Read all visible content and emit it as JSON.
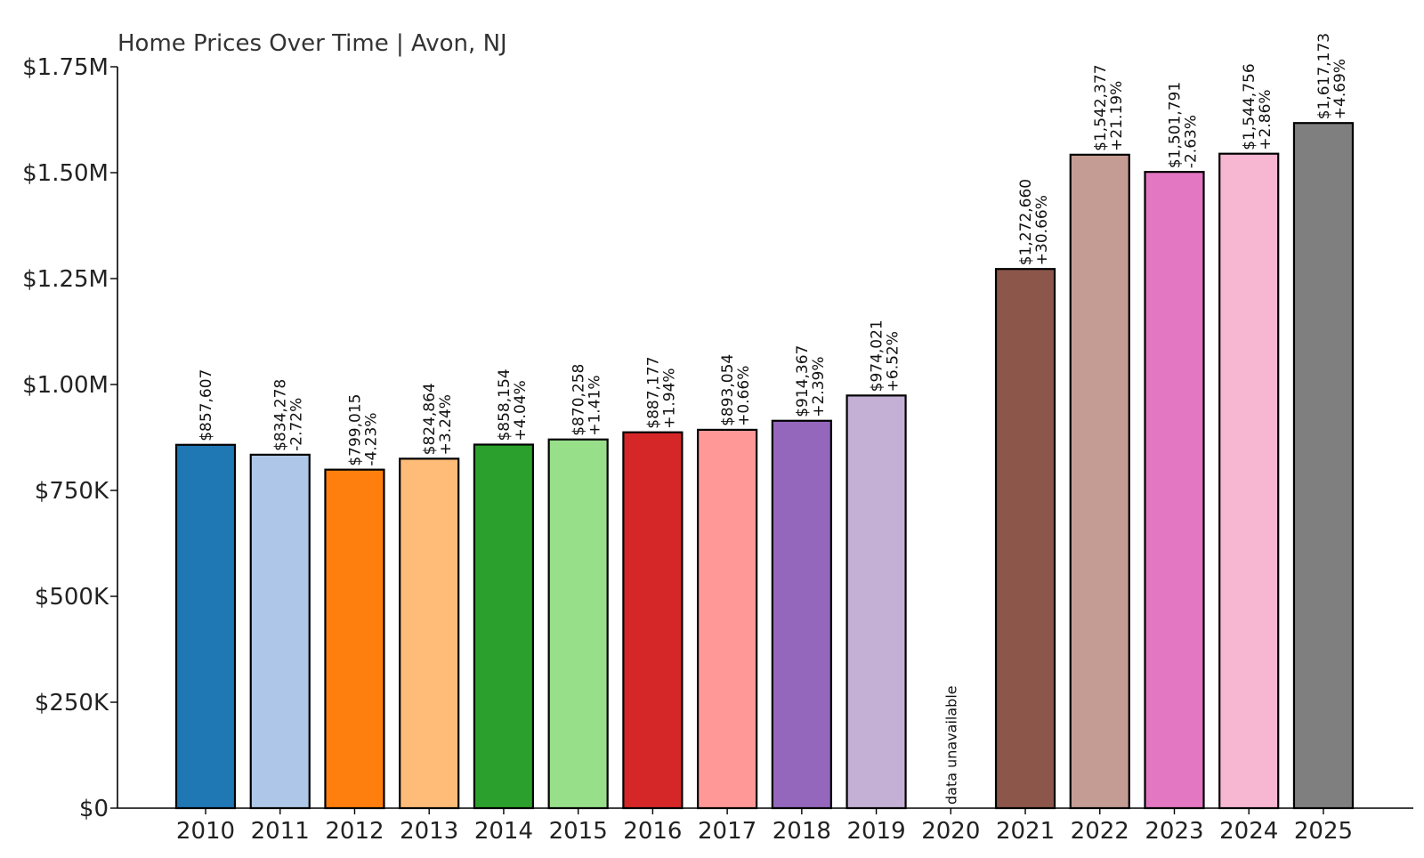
{
  "chart_data": {
    "type": "bar",
    "title": "Home Prices Over Time | Avon, NJ",
    "xlabel": "",
    "ylabel": "",
    "ylim": [
      0,
      1750000
    ],
    "y_ticks": [
      {
        "value": 0,
        "label": "$0"
      },
      {
        "value": 250000,
        "label": "$250K"
      },
      {
        "value": 500000,
        "label": "$500K"
      },
      {
        "value": 750000,
        "label": "$750K"
      },
      {
        "value": 1000000,
        "label": "$1.00M"
      },
      {
        "value": 1250000,
        "label": "$1.25M"
      },
      {
        "value": 1500000,
        "label": "$1.50M"
      },
      {
        "value": 1750000,
        "label": "$1.75M"
      }
    ],
    "grid": false,
    "legend": "none",
    "bars": [
      {
        "year": "2010",
        "value": 857607,
        "price_label": "$857,607",
        "change_label": "",
        "color": "#1f77b4"
      },
      {
        "year": "2011",
        "value": 834278,
        "price_label": "$834,278",
        "change_label": "-2.72%",
        "color": "#aec7e8"
      },
      {
        "year": "2012",
        "value": 799015,
        "price_label": "$799,015",
        "change_label": "-4.23%",
        "color": "#ff7f0e"
      },
      {
        "year": "2013",
        "value": 824864,
        "price_label": "$824,864",
        "change_label": "+3.24%",
        "color": "#ffbb78"
      },
      {
        "year": "2014",
        "value": 858154,
        "price_label": "$858,154",
        "change_label": "+4.04%",
        "color": "#2ca02c"
      },
      {
        "year": "2015",
        "value": 870258,
        "price_label": "$870,258",
        "change_label": "+1.41%",
        "color": "#98df8a"
      },
      {
        "year": "2016",
        "value": 887177,
        "price_label": "$887,177",
        "change_label": "+1.94%",
        "color": "#d62728"
      },
      {
        "year": "2017",
        "value": 893054,
        "price_label": "$893,054",
        "change_label": "+0.66%",
        "color": "#ff9896"
      },
      {
        "year": "2018",
        "value": 914367,
        "price_label": "$914,367",
        "change_label": "+2.39%",
        "color": "#9467bd"
      },
      {
        "year": "2019",
        "value": 974021,
        "price_label": "$974,021",
        "change_label": "+6.52%",
        "color": "#c5b0d5"
      },
      {
        "year": "2020",
        "value": null,
        "price_label": "data unavailable",
        "change_label": "",
        "color": "#ffffff"
      },
      {
        "year": "2021",
        "value": 1272660,
        "price_label": "$1,272,660",
        "change_label": "+30.66%",
        "color": "#8c564b"
      },
      {
        "year": "2022",
        "value": 1542377,
        "price_label": "$1,542,377",
        "change_label": "+21.19%",
        "color": "#c49c94"
      },
      {
        "year": "2023",
        "value": 1501791,
        "price_label": "$1,501,791",
        "change_label": "-2.63%",
        "color": "#e377c2"
      },
      {
        "year": "2024",
        "value": 1544756,
        "price_label": "$1,544,756",
        "change_label": "+2.86%",
        "color": "#f7b6d2"
      },
      {
        "year": "2025",
        "value": 1617173,
        "price_label": "$1,617,173",
        "change_label": "+4.69%",
        "color": "#7f7f7f"
      }
    ]
  }
}
